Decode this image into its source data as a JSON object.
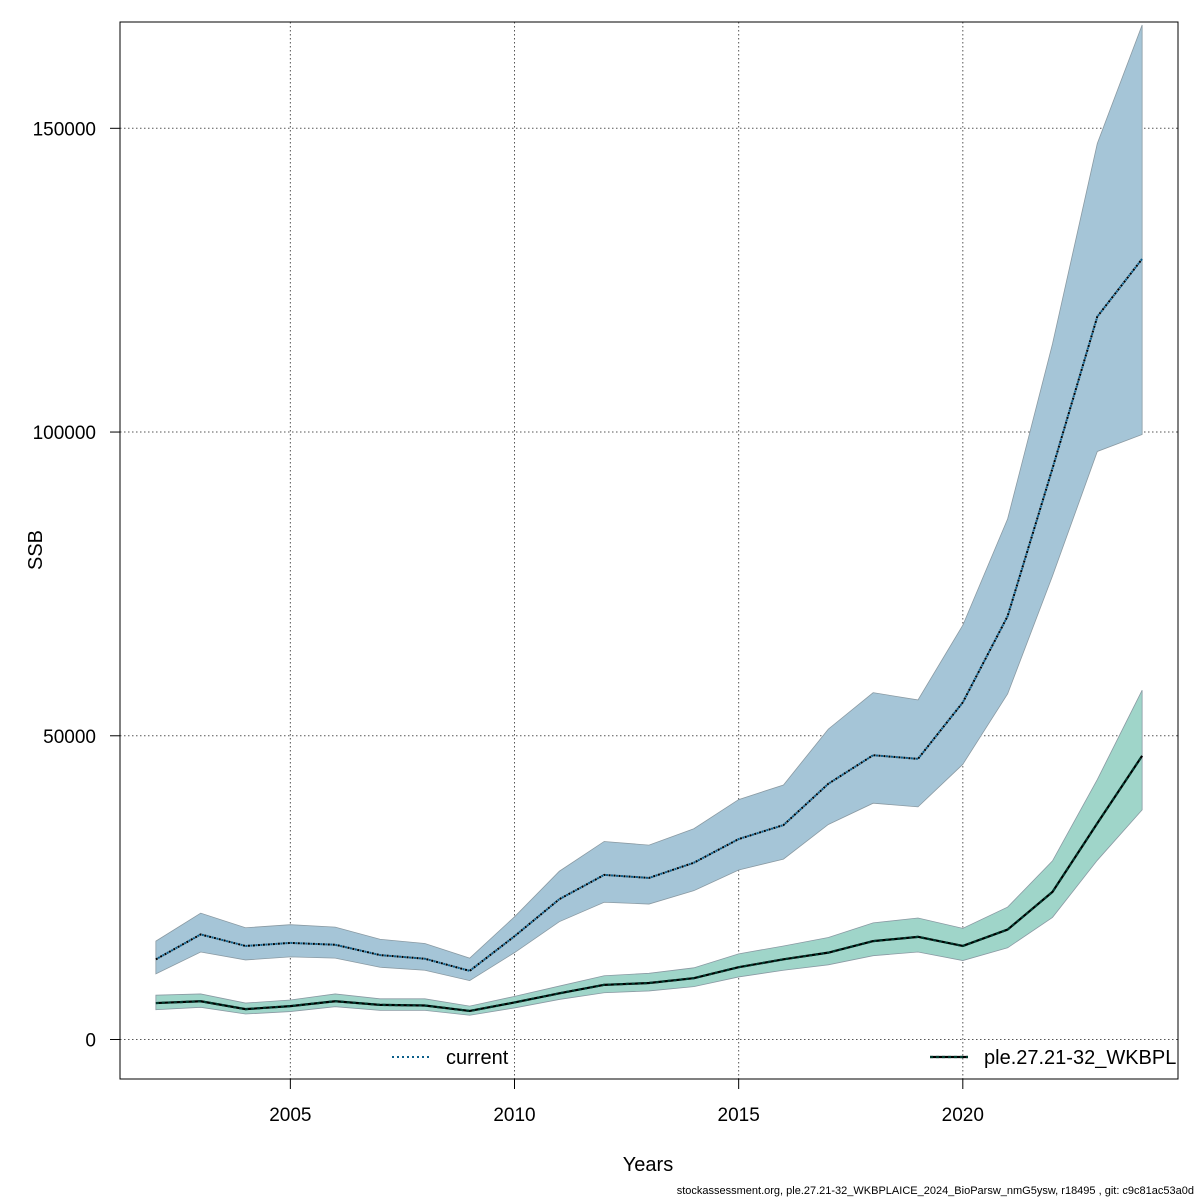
{
  "chart_data": {
    "type": "area",
    "title": "",
    "xlabel": "Years",
    "ylabel": "SSB",
    "xlim": [
      2001.2,
      2024.8
    ],
    "ylim": [
      -6500,
      167500
    ],
    "x_ticks": [
      2005,
      2010,
      2015,
      2020
    ],
    "y_ticks": [
      0,
      50000,
      100000,
      150000
    ],
    "grid": true,
    "legend_placement": "bottom",
    "x": [
      2002,
      2003,
      2004,
      2005,
      2006,
      2007,
      2008,
      2009,
      2010,
      2011,
      2012,
      2013,
      2014,
      2015,
      2016,
      2017,
      2018,
      2019,
      2020,
      2021,
      2022,
      2023,
      2024
    ],
    "series": [
      {
        "name": "current",
        "color": "#0b5e8a",
        "band_color": "#a5c5d7",
        "line_style": "dotted",
        "values": [
          13200,
          17300,
          15400,
          15900,
          15600,
          13900,
          13300,
          11300,
          17000,
          23100,
          27100,
          26600,
          29100,
          33000,
          35300,
          42100,
          46800,
          46200,
          55500,
          69700,
          94000,
          119000,
          128500
        ],
        "lower": [
          10800,
          14400,
          13100,
          13600,
          13400,
          11900,
          11400,
          9700,
          14300,
          19400,
          22600,
          22300,
          24500,
          27900,
          29700,
          35400,
          38900,
          38300,
          45300,
          56900,
          76300,
          96800,
          99600
        ],
        "upper": [
          16200,
          20800,
          18400,
          18900,
          18500,
          16500,
          15800,
          13400,
          20200,
          27700,
          32600,
          32000,
          34700,
          39500,
          41900,
          51100,
          57100,
          55900,
          68200,
          85700,
          114500,
          147500,
          167000
        ]
      },
      {
        "name": "ple.27.21-32_WKBPL",
        "color": "#003b2e",
        "band_color": "#9fd5c9",
        "line_style": "dashed",
        "values": [
          6000,
          6300,
          5000,
          5500,
          6300,
          5700,
          5600,
          4700,
          6100,
          7600,
          9000,
          9300,
          10100,
          11900,
          13200,
          14300,
          16200,
          16900,
          15400,
          18100,
          24300,
          35600,
          46700
        ],
        "lower": [
          4900,
          5300,
          4200,
          4600,
          5400,
          4800,
          4800,
          4000,
          5200,
          6600,
          7700,
          8000,
          8700,
          10300,
          11400,
          12300,
          13800,
          14400,
          13000,
          15100,
          20100,
          29500,
          37800
        ],
        "upper": [
          7300,
          7500,
          6000,
          6500,
          7500,
          6700,
          6700,
          5500,
          7100,
          8800,
          10500,
          10900,
          11800,
          14100,
          15400,
          16800,
          19200,
          20000,
          18300,
          21800,
          29400,
          42800,
          57500
        ]
      }
    ]
  },
  "footer": {
    "note": "stockassessment.org, ple.27.21-32_WKBPLAICE_2024_BioParsw_nmG5ysw, r18495 , git: c9c81ac53a0d"
  }
}
